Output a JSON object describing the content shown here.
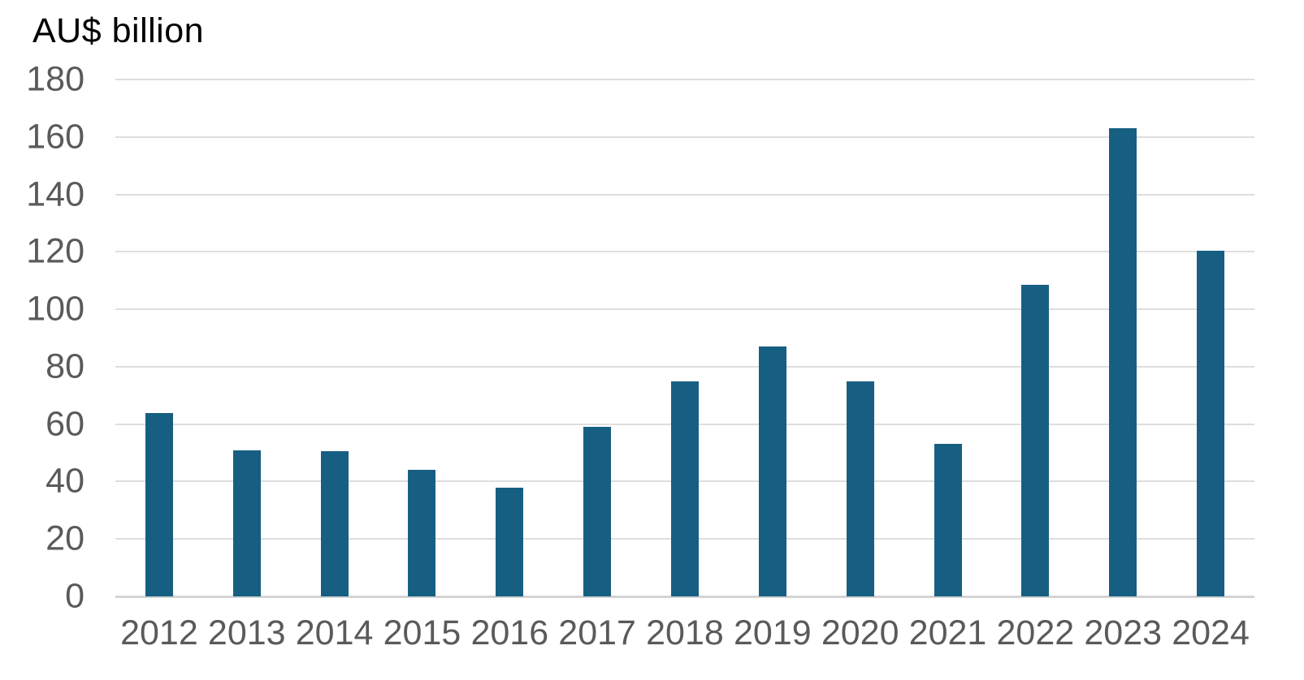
{
  "chart_data": {
    "type": "bar",
    "title": "AU$ billion",
    "xlabel": "",
    "ylabel": "AU$ billion",
    "categories": [
      "2012",
      "2013",
      "2014",
      "2015",
      "2016",
      "2017",
      "2018",
      "2019",
      "2020",
      "2021",
      "2022",
      "2023",
      "2024"
    ],
    "values": [
      64,
      51,
      50.5,
      44,
      38,
      59,
      75,
      87,
      75,
      53,
      108.5,
      163,
      120.5
    ],
    "ylim": [
      0,
      180
    ],
    "yticks": [
      0,
      20,
      40,
      60,
      80,
      100,
      120,
      140,
      160,
      180
    ],
    "grid": true,
    "legend_position": "none",
    "colors": {
      "bar": "#175F82",
      "gridline": "#DEDEDE",
      "axis_line": "#D4D4D4",
      "tick_label": "#5A5A5A",
      "title": "#000000",
      "background": "#FFFFFF"
    }
  }
}
